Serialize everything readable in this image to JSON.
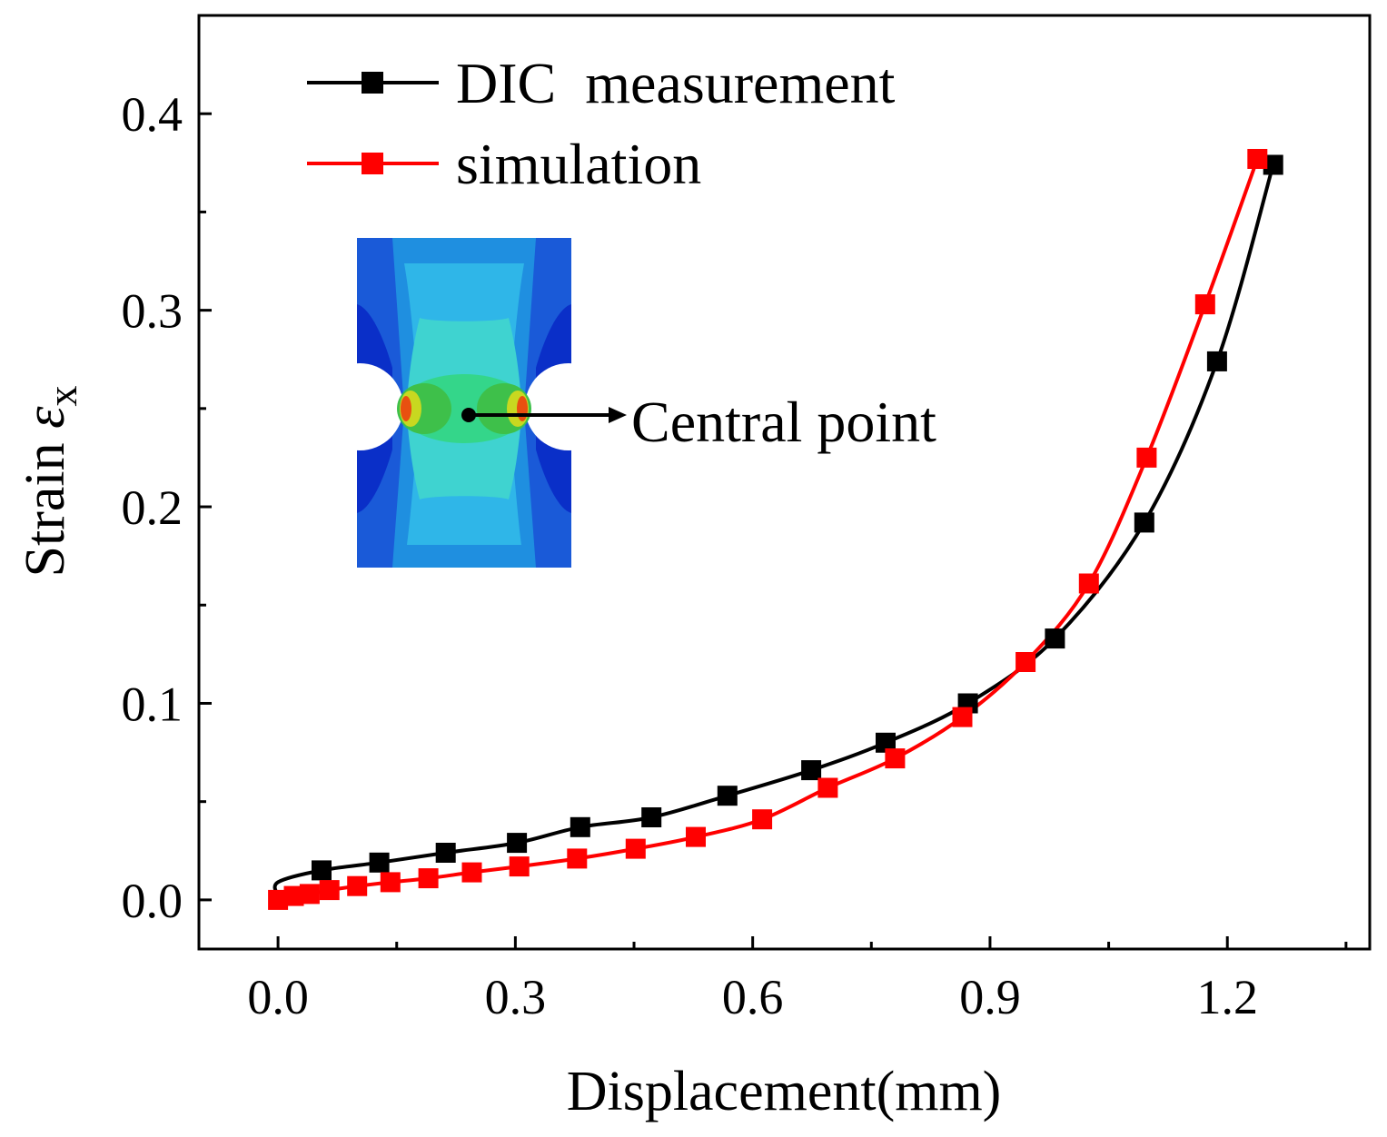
{
  "chart_data": {
    "type": "line",
    "title": "",
    "xlabel": "Displacement(mm)",
    "ylabel_prefix": "Strain ",
    "ylabel_symbol": "ε",
    "ylabel_subscript": "x",
    "xlim": [
      -0.1,
      1.38
    ],
    "ylim": [
      -0.025,
      0.45
    ],
    "xticks": [
      0.0,
      0.3,
      0.6,
      0.9,
      1.2
    ],
    "xtick_labels": [
      "0.0",
      "0.3",
      "0.6",
      "0.9",
      "1.2"
    ],
    "yticks": [
      0.0,
      0.1,
      0.2,
      0.3,
      0.4
    ],
    "ytick_labels": [
      "0.0",
      "0.1",
      "0.2",
      "0.3",
      "0.4"
    ],
    "grid": false,
    "legend_position": "top-left",
    "series": [
      {
        "name": "DIC  measurement",
        "color": "#000000",
        "marker": "square",
        "x": [
          0.055,
          0.128,
          0.212,
          0.302,
          0.382,
          0.472,
          0.568,
          0.674,
          0.768,
          0.872,
          0.982,
          1.095,
          1.187,
          1.258
        ],
        "y": [
          0.015,
          0.019,
          0.024,
          0.029,
          0.037,
          0.042,
          0.053,
          0.066,
          0.08,
          0.1,
          0.133,
          0.192,
          0.274,
          0.374
        ]
      },
      {
        "name": "simulation",
        "color": "#ff0000",
        "marker": "square",
        "x": [
          0.0,
          0.02,
          0.04,
          0.065,
          0.1,
          0.142,
          0.19,
          0.245,
          0.305,
          0.378,
          0.452,
          0.528,
          0.612,
          0.695,
          0.78,
          0.865,
          0.945,
          1.025,
          1.098,
          1.172,
          1.238
        ],
        "y": [
          0.0,
          0.002,
          0.003,
          0.005,
          0.007,
          0.009,
          0.011,
          0.014,
          0.017,
          0.021,
          0.026,
          0.032,
          0.041,
          0.057,
          0.072,
          0.093,
          0.121,
          0.161,
          0.225,
          0.303,
          0.377
        ]
      }
    ],
    "annotations": [
      {
        "text": "Central point"
      }
    ]
  }
}
